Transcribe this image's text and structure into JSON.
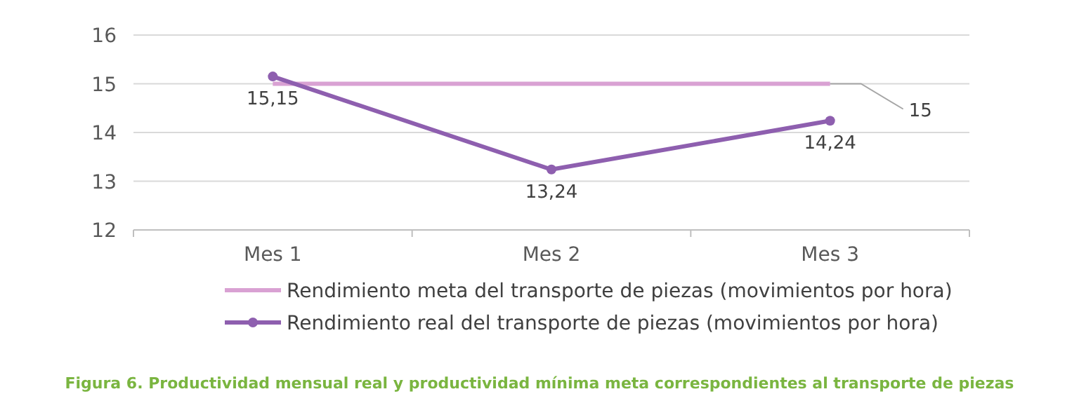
{
  "chart_data": {
    "type": "line",
    "title": "Figura 6. Productividad mensual real y productividad mínima meta correspondientes al transporte de piezas",
    "categories": [
      "Mes 1",
      "Mes 2",
      "Mes 3"
    ],
    "series": [
      {
        "name": "Rendimiento meta del transporte de piezas (movimientos por hora)",
        "color": "#d9a1d3",
        "values": [
          15,
          15,
          15
        ],
        "marker": "none",
        "value_labels": [
          null,
          null,
          "15"
        ]
      },
      {
        "name": "Rendimiento real del transporte de piezas (movimientos por hora)",
        "color": "#8e5faf",
        "values": [
          15.15,
          13.24,
          14.24
        ],
        "marker": "circle",
        "value_labels": [
          "15,15",
          "13,24",
          "14,24"
        ]
      }
    ],
    "ylim": [
      12,
      16
    ],
    "yticks": [
      12,
      13,
      14,
      15,
      16
    ],
    "grid": "y",
    "legend": "bottom"
  }
}
